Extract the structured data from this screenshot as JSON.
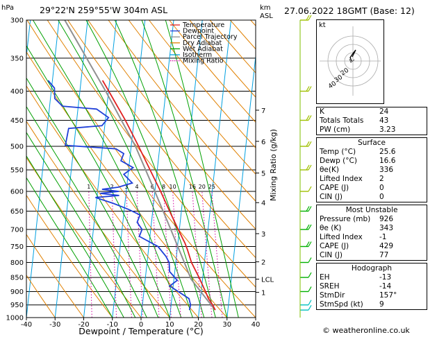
{
  "header": {
    "hpa_label": "hPa",
    "location": "29°22'N 259°55'W 304m ASL",
    "km_label": "km",
    "asl_label": "ASL",
    "valid": "27.06.2022 18GMT (Base: 12)"
  },
  "chart_data": {
    "type": "skew-t log-p",
    "xlabel": "Dewpoint / Temperature (°C)",
    "ylabel": "hPa",
    "right_label": "Mixing Ratio (g/kg)",
    "xlim": [
      -40,
      40
    ],
    "ylim": [
      1000,
      300
    ],
    "x_ticks": [
      -40,
      -30,
      -20,
      -10,
      0,
      10,
      20,
      30,
      40
    ],
    "pressure_levels": [
      300,
      350,
      400,
      450,
      500,
      550,
      600,
      650,
      700,
      750,
      800,
      850,
      900,
      950,
      1000
    ],
    "km_ticks": [
      {
        "label": "7",
        "p": 432
      },
      {
        "label": "6",
        "p": 490
      },
      {
        "label": "5",
        "p": 557
      },
      {
        "label": "4",
        "p": 628
      },
      {
        "label": "3",
        "p": 712
      },
      {
        "label": "2",
        "p": 798
      },
      {
        "label": "LCL",
        "p": 856
      },
      {
        "label": "1",
        "p": 903
      }
    ],
    "mixing_ratio_labels": [
      "1",
      "2",
      "3",
      "4",
      "6",
      "8",
      "10",
      "16",
      "20",
      "25"
    ],
    "legend": [
      {
        "name": "Temperature",
        "color": "#e02020"
      },
      {
        "name": "Dewpoint",
        "color": "#1f3fd8"
      },
      {
        "name": "Parcel Trajectory",
        "color": "#909090"
      },
      {
        "name": "Dry Adiabat",
        "color": "#e08000"
      },
      {
        "name": "Wet Adiabat",
        "color": "#00a000"
      },
      {
        "name": "Isotherm",
        "color": "#00a0e0"
      },
      {
        "name": "Mixing Ratio",
        "color": "#d000a0"
      }
    ],
    "temperature": [
      {
        "p": 970,
        "t": 25.6
      },
      {
        "p": 950,
        "t": 24.5
      },
      {
        "p": 926,
        "t": 22.8
      },
      {
        "p": 900,
        "t": 21.5
      },
      {
        "p": 850,
        "t": 18.7
      },
      {
        "p": 800,
        "t": 15.5
      },
      {
        "p": 760,
        "t": 13.6
      },
      {
        "p": 740,
        "t": 12.5
      },
      {
        "p": 700,
        "t": 9.6
      },
      {
        "p": 650,
        "t": 5.9
      },
      {
        "p": 600,
        "t": 2.0
      },
      {
        "p": 550,
        "t": -2.5
      },
      {
        "p": 500,
        "t": -7.4
      },
      {
        "p": 450,
        "t": -13.0
      },
      {
        "p": 400,
        "t": -19.9
      },
      {
        "p": 383,
        "t": -22.5
      }
    ],
    "dewpoint": [
      {
        "p": 970,
        "t": 16.6
      },
      {
        "p": 950,
        "t": 16.8
      },
      {
        "p": 926,
        "t": 16.0
      },
      {
        "p": 900,
        "t": 12.0
      },
      {
        "p": 880,
        "t": 8.8
      },
      {
        "p": 860,
        "t": 11.2
      },
      {
        "p": 830,
        "t": 8.2
      },
      {
        "p": 800,
        "t": 7.7
      },
      {
        "p": 780,
        "t": 6.3
      },
      {
        "p": 750,
        "t": 3.2
      },
      {
        "p": 720,
        "t": -3.7
      },
      {
        "p": 700,
        "t": -3.0
      },
      {
        "p": 680,
        "t": -5.0
      },
      {
        "p": 660,
        "t": -4.3
      },
      {
        "p": 645,
        "t": -8.6
      },
      {
        "p": 630,
        "t": -14.0
      },
      {
        "p": 615,
        "t": -20.5
      },
      {
        "p": 610,
        "t": -12.3
      },
      {
        "p": 605,
        "t": -19.0
      },
      {
        "p": 600,
        "t": -12.6
      },
      {
        "p": 595,
        "t": -18.5
      },
      {
        "p": 590,
        "t": -13.0
      },
      {
        "p": 580,
        "t": -8.2
      },
      {
        "p": 560,
        "t": -11.5
      },
      {
        "p": 545,
        "t": -8.5
      },
      {
        "p": 530,
        "t": -13.0
      },
      {
        "p": 515,
        "t": -12.3
      },
      {
        "p": 505,
        "t": -15.2
      },
      {
        "p": 498,
        "t": -33.0
      },
      {
        "p": 465,
        "t": -32.5
      },
      {
        "p": 460,
        "t": -21.0
      },
      {
        "p": 445,
        "t": -19.0
      },
      {
        "p": 430,
        "t": -23.5
      },
      {
        "p": 425,
        "t": -35.5
      },
      {
        "p": 412,
        "t": -38.5
      },
      {
        "p": 395,
        "t": -39.0
      },
      {
        "p": 383,
        "t": -41.5
      }
    ],
    "parcel": [
      {
        "p": 970,
        "t": 25.6
      },
      {
        "p": 926,
        "t": 22.0
      },
      {
        "p": 856,
        "t": 16.0
      },
      {
        "p": 800,
        "t": 13.0
      },
      {
        "p": 700,
        "t": 7.0
      },
      {
        "p": 600,
        "t": 0.0
      },
      {
        "p": 500,
        "t": -8.5
      },
      {
        "p": 400,
        "t": -21.0
      },
      {
        "p": 300,
        "t": -38.0
      }
    ],
    "wind_barbs": [
      {
        "p": 970,
        "speed_kt": 9
      },
      {
        "p": 950,
        "speed_kt": 10
      },
      {
        "p": 900,
        "speed_kt": 10
      },
      {
        "p": 850,
        "speed_kt": 10
      },
      {
        "p": 800,
        "speed_kt": 10
      },
      {
        "p": 750,
        "speed_kt": 15
      },
      {
        "p": 700,
        "speed_kt": 15
      },
      {
        "p": 650,
        "speed_kt": 15
      },
      {
        "p": 600,
        "speed_kt": 10
      },
      {
        "p": 550,
        "speed_kt": 15
      },
      {
        "p": 500,
        "speed_kt": 15
      },
      {
        "p": 450,
        "speed_kt": 20
      },
      {
        "p": 400,
        "speed_kt": 20
      },
      {
        "p": 300,
        "speed_kt": 20
      }
    ]
  },
  "hodograph": {
    "label": "kt",
    "ring_labels": [
      "40",
      "30",
      "20"
    ]
  },
  "indices": {
    "rows": [
      {
        "label": "K",
        "value": "24"
      },
      {
        "label": "Totals Totals",
        "value": "43"
      },
      {
        "label": "PW (cm)",
        "value": "3.23"
      }
    ]
  },
  "surface": {
    "title": "Surface",
    "rows": [
      {
        "label": "Temp (°C)",
        "value": "25.6"
      },
      {
        "label": "Dewp (°C)",
        "value": "16.6"
      },
      {
        "label": "θe(K)",
        "value": "336"
      },
      {
        "label": "Lifted Index",
        "value": "2"
      },
      {
        "label": "CAPE (J)",
        "value": "0"
      },
      {
        "label": "CIN (J)",
        "value": "0"
      }
    ]
  },
  "most_unstable": {
    "title": "Most Unstable",
    "rows": [
      {
        "label": "Pressure (mb)",
        "value": "926"
      },
      {
        "label": "θe (K)",
        "value": "343"
      },
      {
        "label": "Lifted Index",
        "value": "-1"
      },
      {
        "label": "CAPE (J)",
        "value": "429"
      },
      {
        "label": "CIN (J)",
        "value": "77"
      }
    ]
  },
  "hodograph_table": {
    "title": "Hodograph",
    "rows": [
      {
        "label": "EH",
        "value": "-13"
      },
      {
        "label": "SREH",
        "value": "-14"
      },
      {
        "label": "StmDir",
        "value": "157°"
      },
      {
        "label": "StmSpd (kt)",
        "value": "9"
      }
    ]
  },
  "copyright": "© weatheronline.co.uk"
}
